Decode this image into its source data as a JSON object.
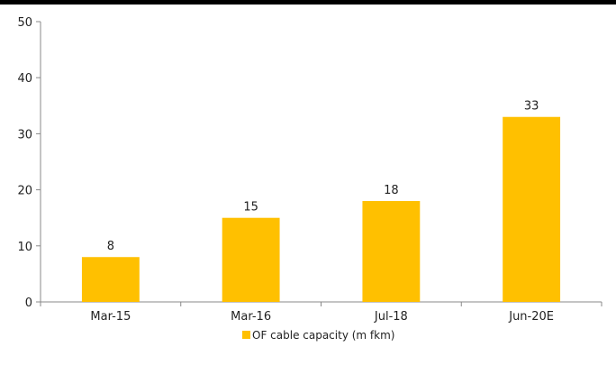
{
  "chart_data": {
    "type": "bar",
    "categories": [
      "Mar-15",
      "Mar-16",
      "Jul-18",
      "Jun-20E"
    ],
    "series": [
      {
        "name": "OF cable capacity (m fkm)",
        "values": [
          8,
          15,
          18,
          33
        ],
        "color": "#FFC000"
      }
    ],
    "data_labels": [
      "8",
      "15",
      "18",
      "33"
    ],
    "ylim": [
      0,
      50
    ],
    "yticks": [
      "0",
      "10",
      "20",
      "30",
      "40",
      "50"
    ],
    "grid": false,
    "legend_position": "bottom"
  }
}
